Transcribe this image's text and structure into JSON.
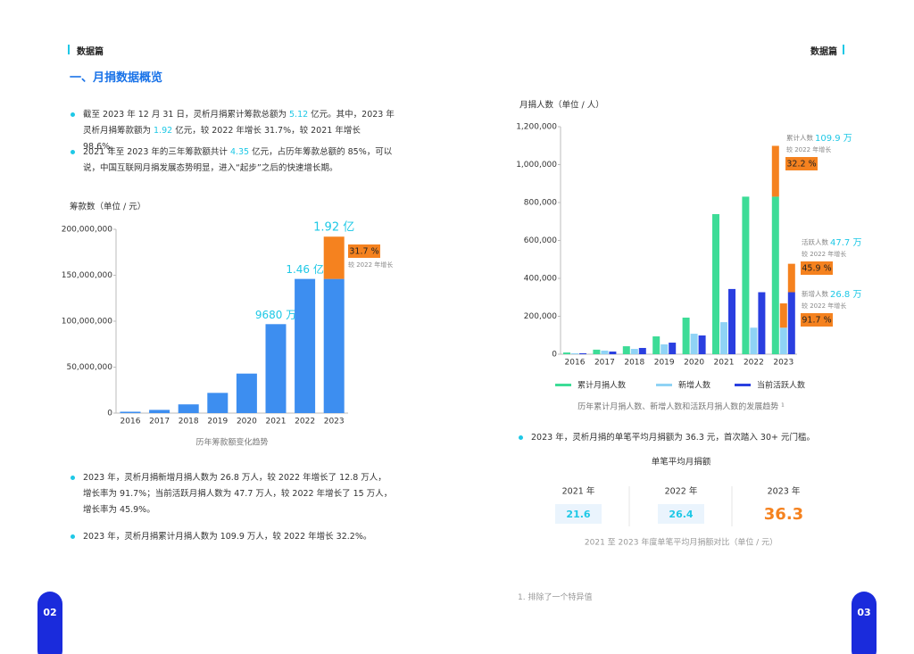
{
  "header": {
    "left": "数据篇",
    "right": "数据篇"
  },
  "section_title": "一、月捐数据概览",
  "intro_bullets": [
    [
      "截至 2023 年 12 月 31 日，灵析月捐累计筹款总额为 ",
      "5.12",
      " 亿元。其中，2023 年灵析月捐筹款额为 ",
      "1.92",
      " 亿元，较 2022 年增长 31.7%，较 2021 年增长 98.6%。"
    ],
    [
      "2021 年至 2023 年的三年筹款额共计 ",
      "4.35",
      " 亿元，占历年筹款总额的 85%，可以说，中国互联网月捐发展态势明显，进入“起步”之后的快速增长期。"
    ]
  ],
  "people_bullets": [
    "2023 年，灵析月捐新增月捐人数为 26.8 万人，较 2022 年增长了 12.8 万人， 增长率为 91.7%；当前活跃月捐人数为 47.7 万人，较 2022 年增长了 15 万人， 增长率为 45.9%。",
    "2023 年，灵析月捐累计月捐人数为 109.9 万人，较 2022 年增长 32.2%。"
  ],
  "chart_data": [
    {
      "type": "bar",
      "y_label": "筹款数（单位 / 元）",
      "caption": "历年筹款额变化趋势",
      "categories": [
        "2016",
        "2017",
        "2018",
        "2019",
        "2020",
        "2021",
        "2022",
        "2023"
      ],
      "values": [
        1500000,
        3500000,
        9500000,
        22000000,
        43000000,
        96800000,
        146000000,
        192000000
      ],
      "value_labels": [
        null,
        null,
        null,
        null,
        null,
        "9680 万",
        "1.46 亿",
        "1.92 亿"
      ],
      "color": "#3d8ef0",
      "growth_color": "#f5821f",
      "growth": {
        "label": "31.7 %",
        "note": "较 2022 年增长"
      },
      "ylim": [
        0,
        200000000
      ],
      "yticks": [
        0,
        {
          "value": 50000000,
          "label": "50,000,000"
        },
        {
          "value": 100000000,
          "label": "100,000,000"
        },
        {
          "value": 150000000,
          "label": "150,000,000"
        },
        {
          "value": 200000000,
          "label": "200,000,000"
        }
      ]
    },
    {
      "type": "grouped_bar",
      "y_label": "月捐人数（单位 / 人）",
      "caption": "历年累计月捐人数、新增人数和活跃月捐人数的发展趋势 ¹",
      "categories": [
        "2016",
        "2017",
        "2018",
        "2019",
        "2020",
        "2021",
        "2022",
        "2023"
      ],
      "growth_color": "#f5821f",
      "series": [
        {
          "name": "累计月捐人数",
          "color": "#3ddc97",
          "values": [
            9000,
            24000,
            42000,
            94000,
            193000,
            739000,
            831000,
            1099000
          ],
          "callout": {
            "caption": "累计人数",
            "value_label": "109.9 万",
            "note": "较 2022 年增长",
            "pct": "32.2 %"
          }
        },
        {
          "name": "新增人数",
          "color": "#8fd3f5",
          "values": [
            5000,
            19000,
            28000,
            52000,
            108000,
            169000,
            140000,
            268000
          ],
          "callout": {
            "caption": "新增人数",
            "value_label": "26.8 万",
            "note": "较 2022 年增长",
            "pct": "91.7 %"
          }
        },
        {
          "name": "当前活跃人数",
          "color": "#2a3fe0",
          "values": [
            5000,
            14000,
            33000,
            61000,
            99000,
            344000,
            327000,
            477000
          ],
          "callout": {
            "caption": "活跃人数",
            "value_label": "47.7 万",
            "note": "较 2022 年增长",
            "pct": "45.9 %"
          }
        }
      ],
      "ylim": [
        0,
        1200000
      ],
      "yticks": [
        0,
        {
          "value": 200000,
          "label": "200,000"
        },
        {
          "value": 400000,
          "label": "400,000"
        },
        {
          "value": 600000,
          "label": "600,000"
        },
        {
          "value": 800000,
          "label": "800,000"
        },
        {
          "value": 1000000,
          "label": "1,000,000"
        },
        {
          "value": 1200000,
          "label": "1,200,000"
        }
      ]
    }
  ],
  "avg_bullet": "2023 年，灵析月捐的单笔平均月捐额为 36.3 元，首次踏入 30+ 元门槛。",
  "avg_table": {
    "title": "单笔平均月捐额",
    "years": [
      "2021 年",
      "2022 年",
      "2023 年"
    ],
    "values": [
      "21.6",
      "26.4",
      "36.3"
    ],
    "caption": "2021 至 2023 年度单笔平均月捐额对比（单位 / 元）"
  },
  "footnote": "1. 排除了一个特异值",
  "page_numbers": [
    "02",
    "03"
  ]
}
